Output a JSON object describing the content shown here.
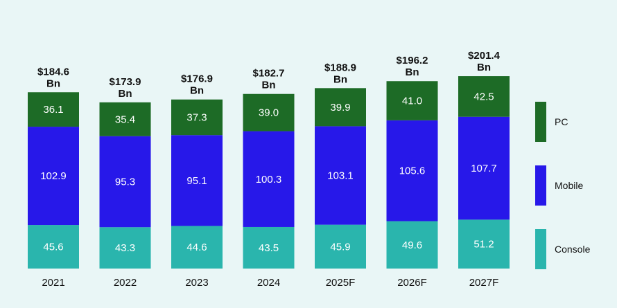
{
  "chart_data": {
    "type": "bar",
    "stacked": true,
    "categories": [
      "2021",
      "2022",
      "2023",
      "2024",
      "2025F",
      "2026F",
      "2027F"
    ],
    "series": [
      {
        "name": "Console",
        "color": "#2ab5ad",
        "values": [
          45.6,
          43.3,
          44.6,
          43.5,
          45.9,
          49.6,
          51.2
        ]
      },
      {
        "name": "Mobile",
        "color": "#2718e9",
        "values": [
          102.9,
          95.3,
          95.1,
          100.3,
          103.1,
          105.6,
          107.7
        ]
      },
      {
        "name": "PC",
        "color": "#1d6b26",
        "values": [
          36.1,
          35.4,
          37.3,
          39.0,
          39.9,
          41.0,
          42.5
        ]
      }
    ],
    "totals": [
      [
        "$184.6",
        "Bn"
      ],
      [
        "$173.9",
        "Bn"
      ],
      [
        "$176.9",
        "Bn"
      ],
      [
        "$182.7",
        "Bn"
      ],
      [
        "$188.9",
        "Bn"
      ],
      [
        "$196.2",
        "Bn"
      ],
      [
        "$201.4",
        "Bn"
      ]
    ],
    "segment_labels": {
      "Console": [
        "45.6",
        "43.3",
        "44.6",
        "43.5",
        "45.9",
        "49.6",
        "51.2"
      ],
      "Mobile": [
        "102.9",
        "95.3",
        "95.1",
        "100.3",
        "103.1",
        "105.6",
        "107.7"
      ],
      "PC": [
        "36.1",
        "35.4",
        "37.3",
        "39.0",
        "39.9",
        "41.0",
        "42.5"
      ]
    },
    "legend": {
      "position": "right",
      "order": [
        "PC",
        "Mobile",
        "Console"
      ]
    },
    "ylim": [
      0,
      210
    ],
    "grid": false,
    "title": "",
    "xlabel": "",
    "ylabel": ""
  }
}
